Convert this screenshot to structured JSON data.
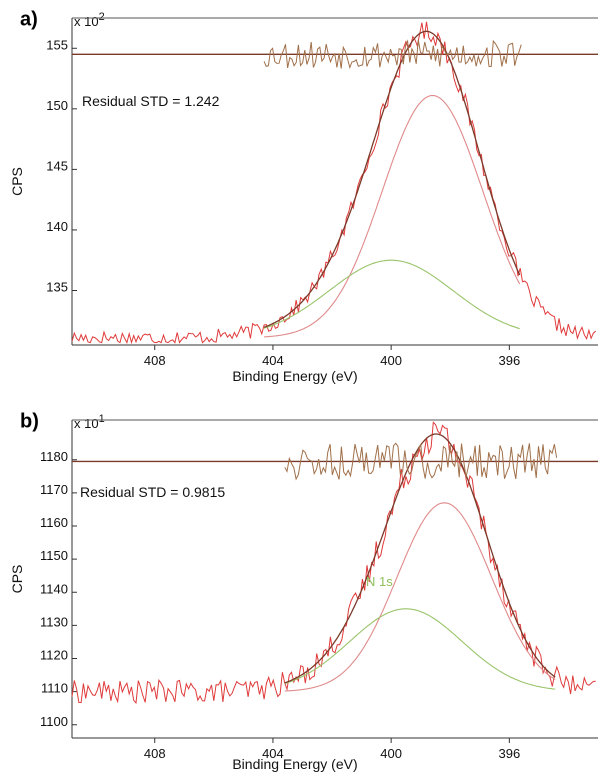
{
  "chart_data": [
    {
      "type": "line",
      "panel_label": "a)",
      "multiplier_base": "x 10",
      "multiplier_exp": "2",
      "xlabel": "Binding Energy (eV)",
      "ylabel": "CPS",
      "xlim": [
        410.8,
        393.0
      ],
      "ylim": [
        130.5,
        157.5
      ],
      "xticks": [
        408,
        404,
        400,
        396
      ],
      "yticks": [
        135,
        140,
        145,
        150,
        155
      ],
      "residual_text": "Residual STD = 1.242",
      "residual_baseline": 154.5,
      "residual_scale": 1.0,
      "residual_xrange": [
        404.3,
        395.6
      ],
      "baseline": 131.1,
      "peaks": [
        {
          "center": 398.6,
          "height": 20.0,
          "width": 1.7
        },
        {
          "center": 400.0,
          "height": 6.4,
          "width": 2.1
        }
      ],
      "noise_amp": 0.6,
      "residual_amp": 1.2,
      "peak_label": "",
      "series": [
        {
          "color": "#e03a3a"
        },
        {
          "color": "#e08a8a"
        },
        {
          "color": "#99c46a"
        },
        {
          "color": "#7a3a2a"
        },
        {
          "color": "#a0704a"
        }
      ]
    },
    {
      "type": "line",
      "panel_label": "b)",
      "multiplier_base": "x 10",
      "multiplier_exp": "1",
      "xlabel": "Binding Energy (eV)",
      "ylabel": "CPS",
      "xlim": [
        410.8,
        393.0
      ],
      "ylim": [
        1096,
        1192
      ],
      "xticks": [
        408,
        404,
        400,
        396
      ],
      "yticks": [
        1100,
        1110,
        1120,
        1130,
        1140,
        1150,
        1160,
        1170,
        1180
      ],
      "residual_text": "Residual STD = 0.9815",
      "residual_baseline": 1179.5,
      "residual_scale": 2.5,
      "residual_xrange": [
        403.6,
        394.4
      ],
      "baseline": 1110.0,
      "peaks": [
        {
          "center": 398.2,
          "height": 57.0,
          "width": 1.6
        },
        {
          "center": 399.5,
          "height": 25.0,
          "width": 1.9
        }
      ],
      "noise_amp": 3.5,
      "residual_amp": 2.2,
      "peak_label": "N 1s",
      "series": [
        {
          "color": "#e03a3a"
        },
        {
          "color": "#e08a8a"
        },
        {
          "color": "#99c46a"
        },
        {
          "color": "#7a3a2a"
        },
        {
          "color": "#a0704a"
        }
      ]
    }
  ]
}
